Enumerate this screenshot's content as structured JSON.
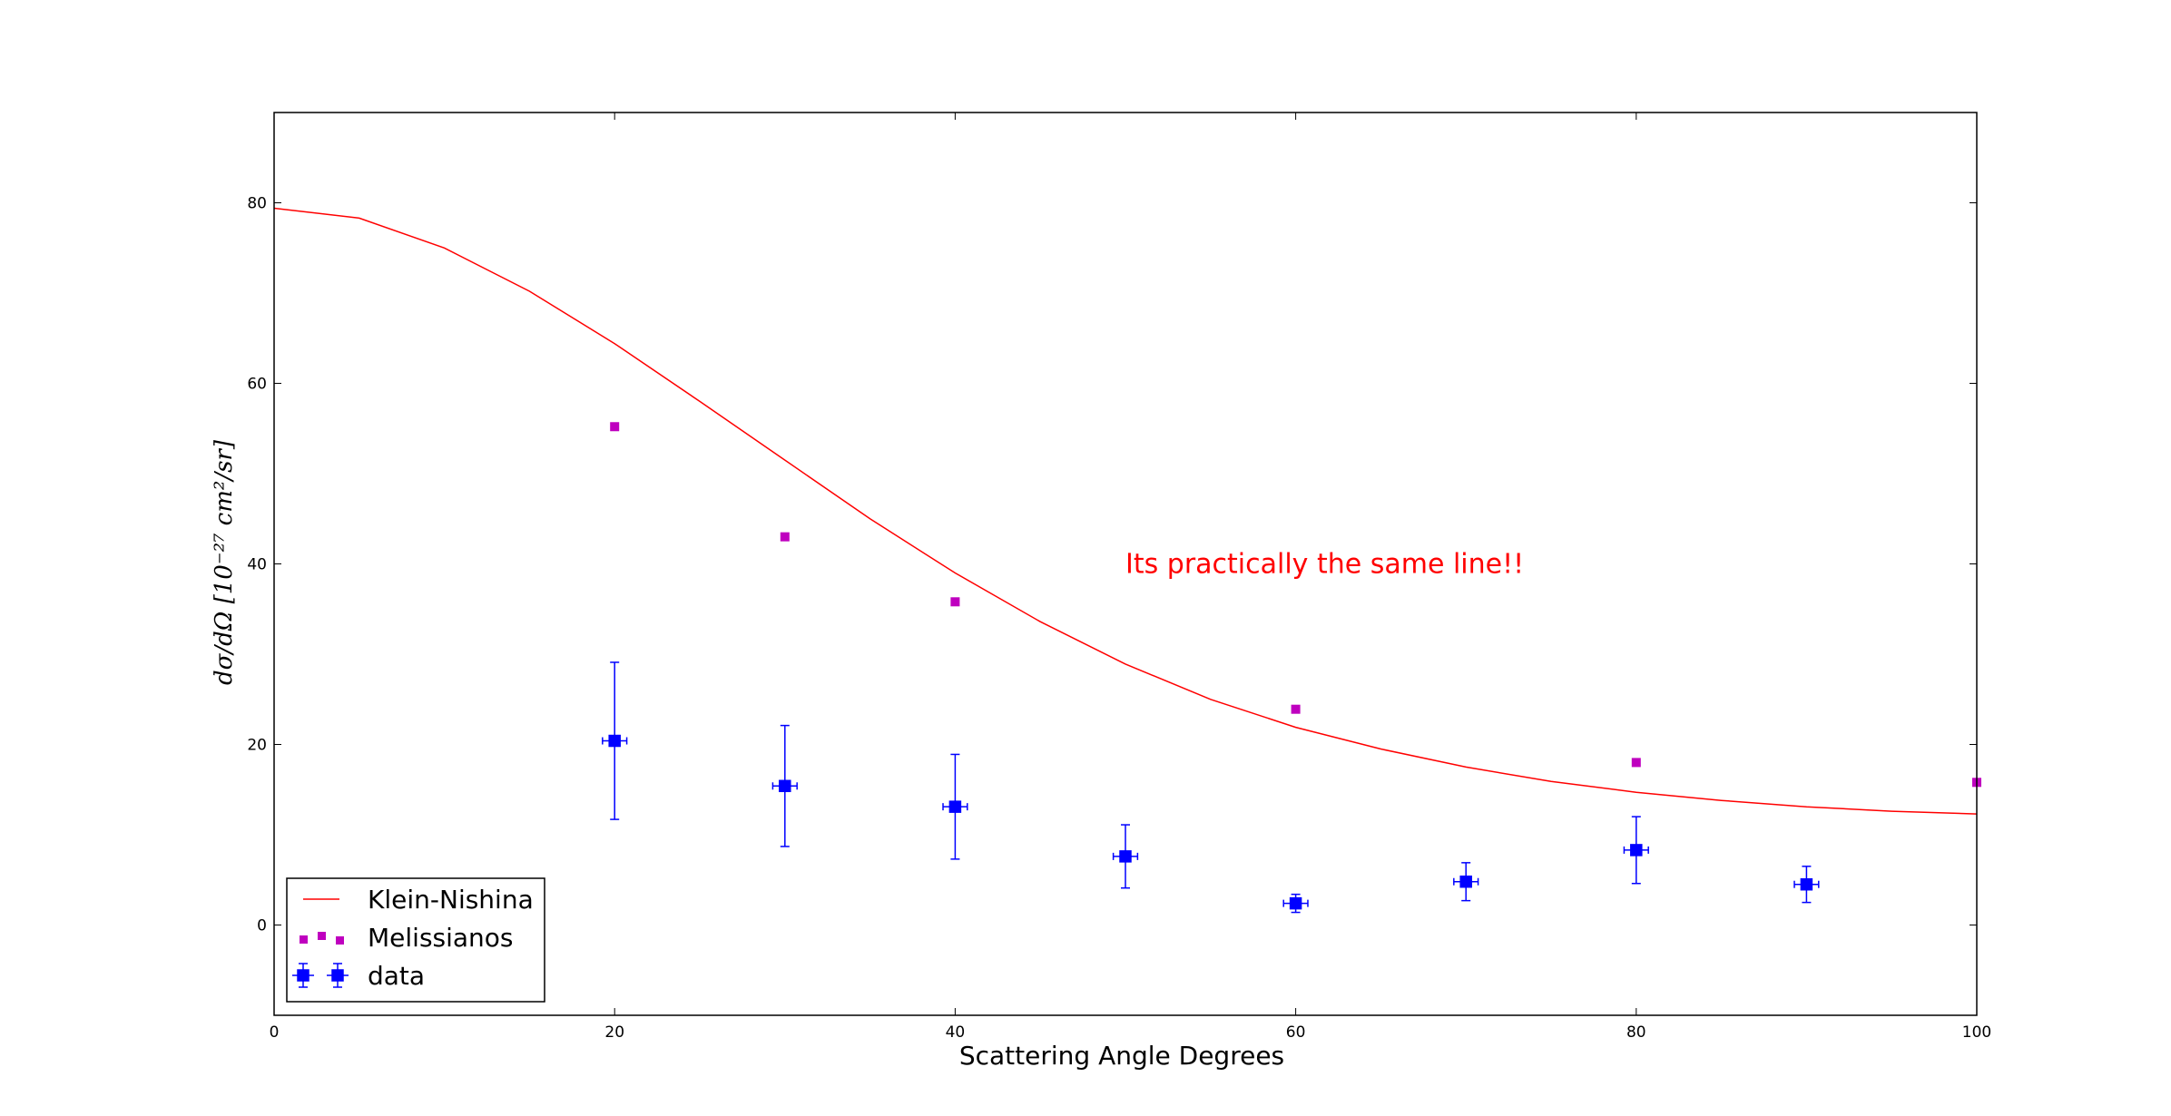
{
  "chart_data": {
    "type": "scatter",
    "title": "",
    "xlabel": "Scattering Angle Degrees",
    "ylabel": "dσ/dΩ [10⁻²⁷ cm²/sr]",
    "xlim": [
      0,
      100
    ],
    "ylim": [
      -10,
      90
    ],
    "xticks": [
      0,
      20,
      40,
      60,
      80,
      100
    ],
    "yticks": [
      0,
      20,
      40,
      60,
      80
    ],
    "grid": false,
    "legend_position": "lower-left",
    "annotation": {
      "text": "Its practically the same line!!",
      "x": 50,
      "y": 40,
      "color": "#ff0000"
    },
    "series": [
      {
        "name": "Klein-Nishina",
        "kind": "line",
        "color": "#ff0000",
        "x": [
          0,
          5,
          10,
          15,
          20,
          25,
          30,
          35,
          40,
          45,
          50,
          55,
          60,
          65,
          70,
          75,
          80,
          85,
          90,
          95,
          100
        ],
        "y": [
          79.4,
          78.3,
          75.0,
          70.2,
          64.4,
          58.0,
          51.5,
          45.0,
          39.0,
          33.6,
          28.9,
          25.0,
          21.9,
          19.5,
          17.5,
          15.9,
          14.7,
          13.8,
          13.1,
          12.6,
          12.3
        ]
      },
      {
        "name": "Melissianos",
        "kind": "points",
        "color": "#bf00bf",
        "x": [
          20,
          30,
          40,
          60,
          80,
          100
        ],
        "y": [
          55.2,
          43.0,
          35.8,
          23.9,
          18.0,
          15.8
        ]
      },
      {
        "name": "data",
        "kind": "errorbar",
        "color": "#0000ff",
        "x": [
          20,
          30,
          40,
          50,
          60,
          70,
          80,
          90
        ],
        "y": [
          20.4,
          15.4,
          13.1,
          7.6,
          2.4,
          4.8,
          8.3,
          4.5
        ],
        "yerr": [
          8.7,
          6.7,
          5.8,
          3.5,
          1.0,
          2.1,
          3.7,
          2.0
        ],
        "xerr": [
          0.5,
          0.5,
          0.5,
          0.5,
          0.5,
          0.5,
          0.5,
          0.5
        ]
      }
    ]
  }
}
